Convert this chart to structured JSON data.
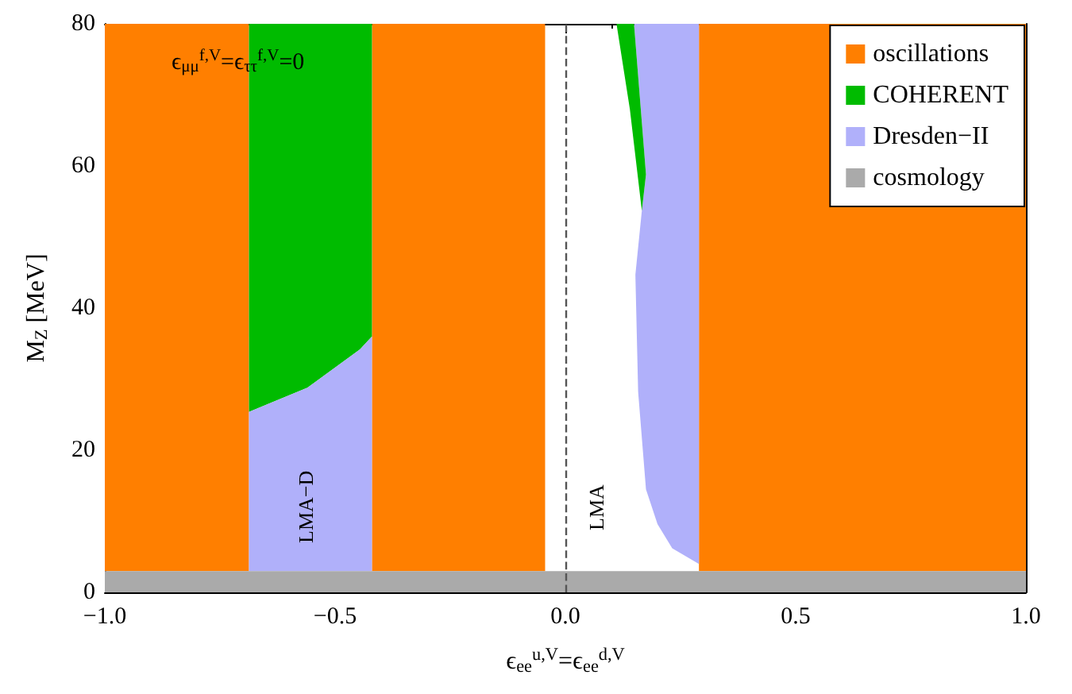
{
  "chart_data": {
    "type": "area",
    "xlabel": "ϵ$_{ee}$$^{u,V}$=ϵ$_{ee}$$^{d,V}$",
    "ylabel": "M$_{Z}$ [MeV]",
    "xlim": [
      -1,
      1
    ],
    "xticks": [
      {
        "value": -1,
        "label": "−1.0"
      },
      {
        "value": -0.5,
        "label": "−0.5"
      },
      {
        "value": 0,
        "label": "0.0"
      },
      {
        "value": 0.5,
        "label": "0.5"
      },
      {
        "value": 1,
        "label": "1.0"
      }
    ],
    "ylim": [
      0,
      80
    ],
    "yticks": [
      0,
      20,
      40,
      60,
      80
    ],
    "grid": false,
    "legend": "top right",
    "series": [
      {
        "name": "oscillations",
        "color": "#ff7f00",
        "x": [
          -1,
          -0.687,
          -0.687,
          -1
        ],
        "values": [
          3,
          3,
          80,
          80
        ]
      },
      {
        "color": "#ff7f00",
        "x": [
          -0.42,
          -0.044,
          -0.044,
          -0.42
        ],
        "values": [
          3,
          3,
          80,
          80
        ]
      },
      {
        "color": "#ff7f00",
        "x": [
          0.29,
          1,
          1,
          0.29
        ],
        "values": [
          3,
          3,
          80,
          80
        ]
      },
      {
        "name": "COHERENT",
        "color": "#00bb00",
        "x": [
          -0.687,
          -0.56,
          -0.446,
          -0.42,
          -0.42,
          -0.687
        ],
        "values": [
          25.4,
          28.8,
          34.2,
          36,
          80,
          80
        ]
      },
      {
        "name": "Dresden−II",
        "color": "#b0b0fa",
        "x": [
          -0.687,
          -0.42,
          -0.42,
          -0.446,
          -0.56,
          -0.687
        ],
        "values": [
          3,
          3,
          36,
          34.2,
          28.8,
          25.4
        ]
      },
      {
        "color": "#b0b0fa",
        "x": [
          0.149,
          0.29,
          0.29,
          0.232,
          0.2,
          0.175,
          0.158,
          0.152,
          0.166,
          0.175
        ],
        "values": [
          80,
          80,
          4,
          6.2,
          9.6,
          14.5,
          28.2,
          44.7,
          53.7,
          58.8
        ]
      },
      {
        "color": "#00bb00",
        "x": [
          0.111,
          0.149,
          0.175,
          0.166,
          0.14
        ],
        "values": [
          80,
          80,
          58.8,
          53.7,
          68
        ]
      },
      {
        "name": "cosmology",
        "color": "#aaaaaa",
        "x": [
          -1,
          1,
          1,
          -1
        ],
        "values": [
          0,
          0,
          3,
          3
        ]
      }
    ],
    "ref_lines": [
      {
        "axis": "x",
        "value": 0,
        "color": "#555555",
        "line_style": "dashed"
      }
    ],
    "annotations": [
      "ϵ$_{μμ}$$^{f,V}$=ϵ$_{ττ}$$^{f,V}$=0",
      "LMA−D",
      "LMA"
    ]
  }
}
